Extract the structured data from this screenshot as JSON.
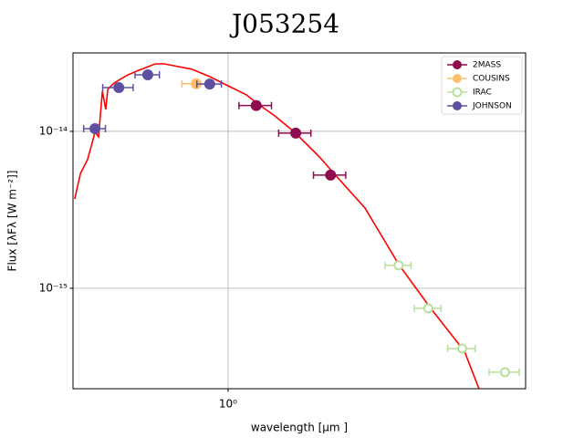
{
  "chart_data": {
    "type": "scatter",
    "title": "J053254",
    "x_label": "wavelength [μm ]",
    "y_label": "Flux [λFλ [W  m⁻²]]",
    "x_log": true,
    "y_log": true,
    "grid": true,
    "legend_loc": "upper right",
    "xlim": [
      0.312,
      9.34
    ],
    "ylim": [
      2.29e-16,
      3.16e-14
    ],
    "xticks": [
      {
        "value": 1,
        "label": "10⁰"
      }
    ],
    "yticks": [
      {
        "value": 1e-15,
        "label": "10⁻¹⁵"
      },
      {
        "value": 1e-14,
        "label": "10⁻¹⁴"
      }
    ],
    "model": {
      "color": "#ff0000",
      "x": [
        0.316,
        0.33,
        0.348,
        0.358,
        0.368,
        0.378,
        0.389,
        0.399,
        0.405,
        0.422,
        0.44,
        0.471,
        0.504,
        0.54,
        0.578,
        0.619,
        0.686,
        0.76,
        0.872,
        1.0,
        1.147,
        1.253,
        1.409,
        1.649,
        1.985,
        2.213,
        2.794,
        3.6,
        4.58,
        5.9,
        6.58
      ],
      "values": [
        3.71e-15,
        5.4e-15,
        6.6e-15,
        8.07e-15,
        9.87e-15,
        9.23e-15,
        1.8e-14,
        1.38e-14,
        1.85e-14,
        2.01e-14,
        2.12e-14,
        2.29e-14,
        2.42e-14,
        2.55e-14,
        2.69e-14,
        2.69e-14,
        2.59e-14,
        2.49e-14,
        2.23e-14,
        1.95e-14,
        1.71e-14,
        1.49e-14,
        1.27e-14,
        9.87e-15,
        6.88e-15,
        5.4e-15,
        3.25e-15,
        1.42e-15,
        7.45e-16,
        3.97e-16,
        2.29e-16
      ]
    },
    "series": [
      {
        "name": "2MASS",
        "color": "#8e0c4f",
        "filled": true,
        "x": [
          1.235,
          1.662,
          2.159
        ],
        "x_err": [
          0.15,
          0.2,
          0.26
        ],
        "values": [
          1.46e-14,
          9.74e-15,
          5.26e-15
        ]
      },
      {
        "name": "COUSINS",
        "color": "#fdbf6f",
        "filled": true,
        "x": [
          0.787
        ],
        "x_err": [
          0.08
        ],
        "values": [
          2.01e-14
        ]
      },
      {
        "name": "IRAC",
        "color": "#b8e09a",
        "filled": false,
        "x": [
          3.6,
          4.5,
          5.8,
          8.0
        ],
        "x_err": [
          0.35,
          0.45,
          0.6,
          0.9
        ],
        "values": [
          1.4e-15,
          7.45e-16,
          4.13e-16,
          2.92e-16
        ]
      },
      {
        "name": "JOHNSON",
        "color": "#5e4fa2",
        "filled": true,
        "x": [
          0.368,
          0.44,
          0.547,
          0.871
        ],
        "x_err": [
          0.03,
          0.05,
          0.05,
          0.08
        ],
        "values": [
          1.04e-14,
          1.9e-14,
          2.29e-14,
          2e-14
        ]
      }
    ]
  }
}
